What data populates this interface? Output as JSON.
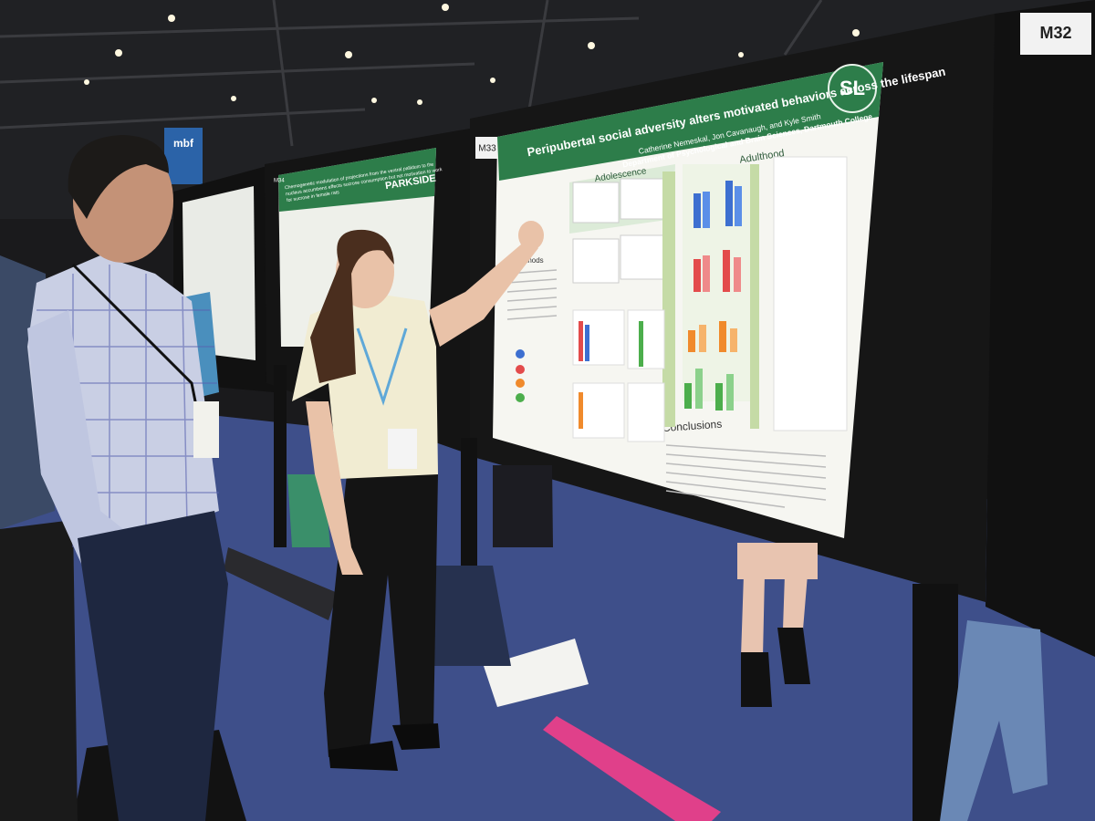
{
  "scene": {
    "board_labels": [
      "M32",
      "M33",
      "M34"
    ],
    "sign": "mbf",
    "main_poster": {
      "title": "Peripubertal social adversity alters motivated behaviors across the lifespan",
      "authors": "Catherine Nemeskal, Jon Cavanaugh, and Kyle Smith",
      "affiliation": "Department of Psychological and Brain Sciences, Dartmouth College",
      "logo": "SL",
      "sections": [
        "Adolescence",
        "Adulthood",
        "Methods",
        "Conclusions"
      ]
    },
    "left_poster": {
      "title_lines": [
        "Chemogenetic modulation of projections from the ventral pallidum to the",
        "nucleus accumbens effects sucrose consumption but not motivation to work",
        "for sucrose in female rats"
      ],
      "logo": "PARKSIDE"
    }
  }
}
